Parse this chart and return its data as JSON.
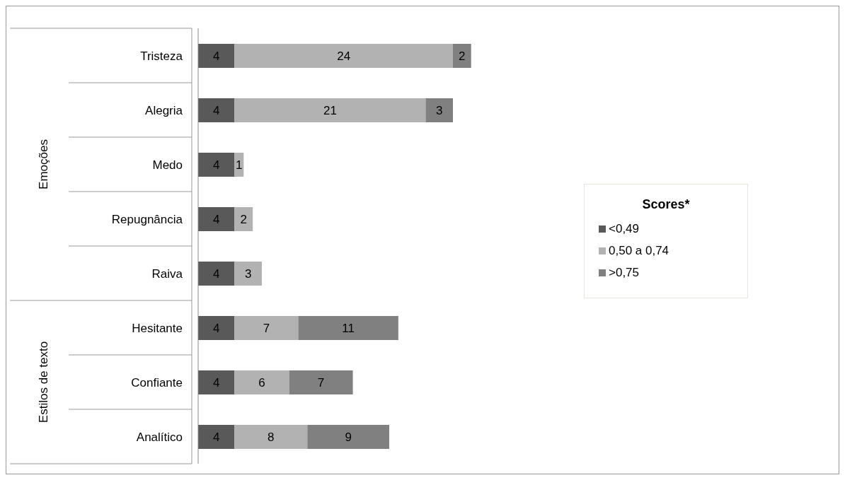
{
  "chart_data": {
    "type": "bar",
    "orientation": "horizontal",
    "stacked": true,
    "legend": "right",
    "legend_title": "Scores*",
    "data_labels": true,
    "categories": [
      "Tristeza",
      "Alegria",
      "Medo",
      "Repugnância",
      "Raiva",
      "Hesitante",
      "Confiante",
      "Analítico"
    ],
    "series": [
      {
        "name": "<0,49",
        "color": "#595959",
        "values": [
          4,
          4,
          4,
          4,
          4,
          4,
          4,
          4
        ]
      },
      {
        "name": "0,50 a 0,74",
        "color": "#b2b2b2",
        "values": [
          24,
          21,
          1,
          2,
          3,
          7,
          6,
          8
        ]
      },
      {
        "name": ">0,75",
        "color": "#808080",
        "values": [
          2,
          3,
          null,
          null,
          null,
          11,
          7,
          9
        ]
      }
    ],
    "annotations": [
      "Emoções",
      "Estilos de texto"
    ]
  }
}
